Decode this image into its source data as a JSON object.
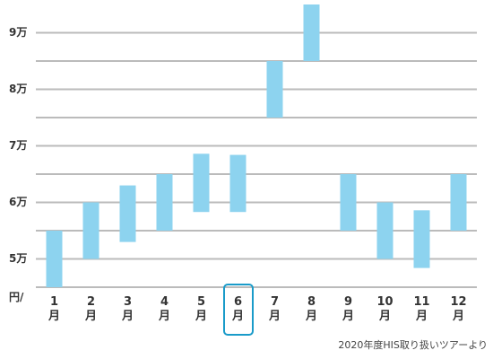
{
  "chart_data": {
    "type": "floating-bar",
    "categories": [
      "1\n月",
      "2\n月",
      "3\n月",
      "4\n月",
      "5\n月",
      "6\n月",
      "7\n月",
      "8\n月",
      "9\n月",
      "10\n月",
      "11\n月",
      "12\n月"
    ],
    "low": [
      4.5,
      5.0,
      5.3,
      5.5,
      5.83,
      5.83,
      7.5,
      8.5,
      5.5,
      5.0,
      4.84,
      5.5
    ],
    "high": [
      5.5,
      6.0,
      6.3,
      6.5,
      6.86,
      6.84,
      8.5,
      9.5,
      6.5,
      6.0,
      5.86,
      6.5
    ],
    "color": "#8dd3ef",
    "ylim": [
      4.5,
      9.5
    ],
    "yticks": [
      {
        "value": 5,
        "label": "5万"
      },
      {
        "value": 6,
        "label": "6万"
      },
      {
        "value": 7,
        "label": "7万"
      },
      {
        "value": 8,
        "label": "8万"
      },
      {
        "value": 9,
        "label": "9万"
      }
    ],
    "minor_yticks": [
      4.5,
      5.5,
      6.5,
      7.5,
      8.5
    ],
    "grid": true,
    "y_unit": "円/",
    "highlighted_index": 5,
    "source": "2020年度HIS取り扱いツアーより"
  }
}
